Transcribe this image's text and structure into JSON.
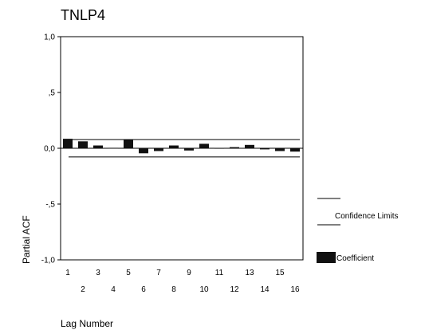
{
  "chart_data": {
    "type": "bar",
    "title": "TNLP4",
    "xlabel": "Lag Number",
    "ylabel": "Partial ACF",
    "ylim": [
      -1.0,
      1.0
    ],
    "yticks": [
      {
        "value": 1.0,
        "label": "1,0"
      },
      {
        "value": 0.5,
        "label": ",5"
      },
      {
        "value": 0.0,
        "label": "0,0"
      },
      {
        "value": -0.5,
        "label": "-,5"
      },
      {
        "value": -1.0,
        "label": "-1,0"
      }
    ],
    "categories": [
      "1",
      "2",
      "3",
      "4",
      "5",
      "6",
      "7",
      "8",
      "9",
      "10",
      "11",
      "12",
      "13",
      "14",
      "15",
      "16"
    ],
    "series": [
      {
        "name": "Coefficient",
        "values": [
          0.085,
          0.062,
          0.025,
          0.004,
          0.075,
          -0.045,
          -0.025,
          0.025,
          -0.02,
          0.04,
          0.003,
          0.01,
          0.03,
          -0.01,
          -0.025,
          -0.03
        ]
      }
    ],
    "confidence_limits": [
      0.078,
      -0.078
    ],
    "legend": {
      "position": "right",
      "confidence_label": "Confidence Limits",
      "coefficient_label": "Coefficient"
    },
    "grid": false
  }
}
